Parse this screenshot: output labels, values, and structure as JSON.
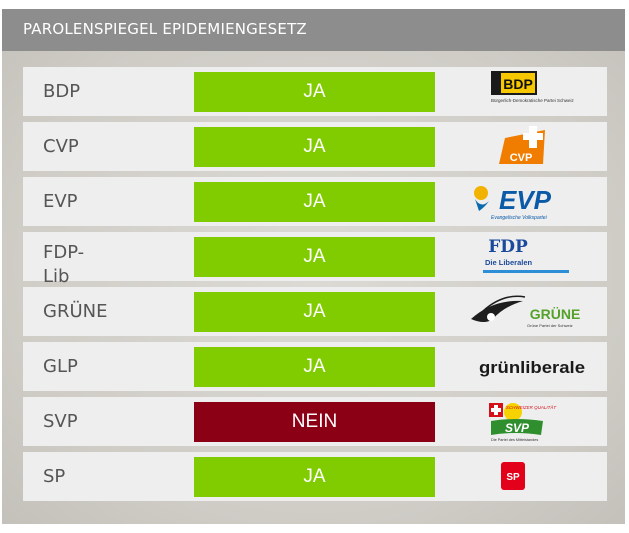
{
  "title": "PAROLENSPIEGEL EPIDEMIENGESETZ",
  "colors": {
    "ja": "#80cc00",
    "nein": "#8c0016",
    "header": "#8d8d8d"
  },
  "rows": [
    {
      "party": "BDP",
      "vote": "JA",
      "logo_text": "BDP",
      "logo_sub": "Bürgerlich-Demokratische Partei Schweiz"
    },
    {
      "party": "CVP",
      "vote": "JA",
      "logo_text": "CVP"
    },
    {
      "party": "EVP",
      "vote": "JA",
      "logo_text": "EVP",
      "logo_sub": "Evangelische Volkspartei"
    },
    {
      "party": "FDP-\nLib",
      "vote": "JA",
      "logo_text": "FDP",
      "logo_sub": "Die Liberalen"
    },
    {
      "party": "GRÜNE",
      "vote": "JA",
      "logo_text": "GRÜNE",
      "logo_sub": "Grüne Partei der Schweiz"
    },
    {
      "party": "GLP",
      "vote": "JA",
      "logo_text": "grünliberale"
    },
    {
      "party": "SVP",
      "vote": "NEIN",
      "logo_text": "SVP",
      "logo_sub": "Die Partei des Mittelstandes",
      "logo_badge": "SCHWEIZER QUALITÄT"
    },
    {
      "party": "SP",
      "vote": "JA",
      "logo_text": "SP"
    }
  ]
}
